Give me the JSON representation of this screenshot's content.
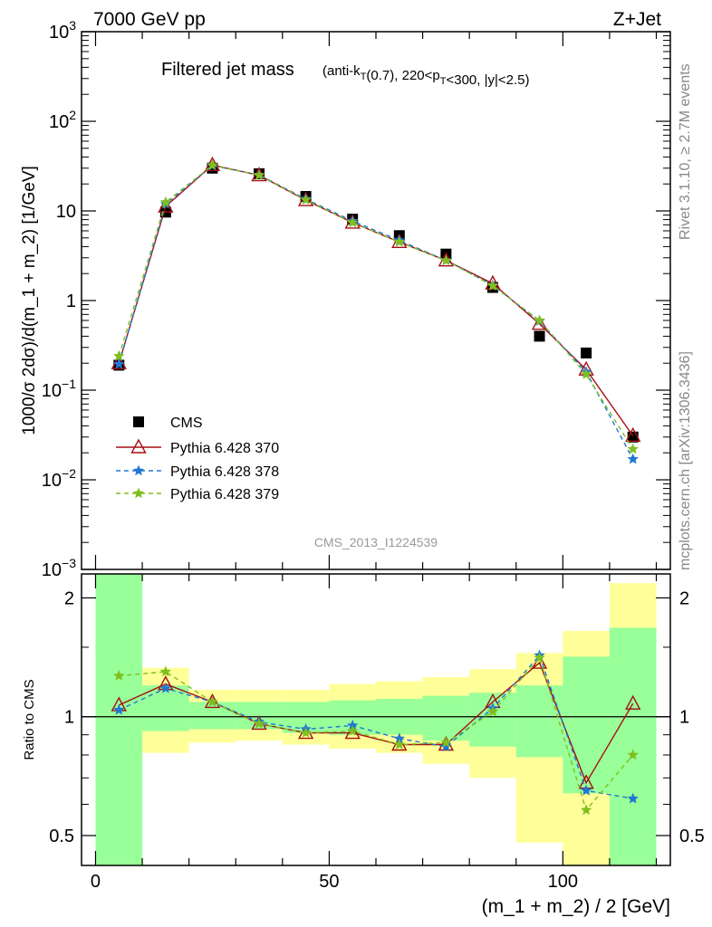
{
  "header": {
    "left": "7000 GeV pp",
    "right": "Z+Jet"
  },
  "side_text": {
    "rivet": "Rivet 3.1.10, ≥ 2.7M events",
    "mcplots": "mcplots.cern.ch [arXiv:1306.3436]"
  },
  "chart_data": [
    {
      "type": "scatter",
      "title": "Filtered jet mass",
      "subtitle": "(anti-k_T(0.7), 220<p_T<300, |y|<2.5)",
      "ylabel": "1000/σ 2dσ)/d(m_1 + m_2) [1/GeV]",
      "yscale": "log",
      "ylim": [
        0.001,
        1000
      ],
      "xlim": [
        -3,
        123
      ],
      "y_tick_labels": [
        "10^-3",
        "10^-2",
        "10^-1",
        "1",
        "10",
        "10^2",
        "10^3"
      ],
      "watermark": "CMS_2013_I1224539",
      "legend_position": "lower-left",
      "x": [
        5,
        15,
        25,
        35,
        45,
        55,
        65,
        75,
        85,
        95,
        105,
        115
      ],
      "series": [
        {
          "name": "CMS",
          "color": "#000000",
          "marker": "square",
          "values": [
            0.19,
            9.7,
            30,
            26,
            14.5,
            8.1,
            5.3,
            3.3,
            1.4,
            0.4,
            0.26,
            0.03
          ]
        },
        {
          "name": "Pythia 6.428 370",
          "color": "#a50f15",
          "marker": "open-triangle",
          "dash": "solid",
          "values": [
            0.2,
            11.2,
            32.5,
            25,
            13.2,
            7.4,
            4.5,
            2.8,
            1.55,
            0.55,
            0.17,
            0.031
          ]
        },
        {
          "name": "Pythia 6.428 378",
          "color": "#1f78d4",
          "marker": "star",
          "dash": "dashed",
          "values": [
            0.195,
            11.9,
            32,
            25.2,
            13.6,
            7.7,
            4.7,
            2.8,
            1.48,
            0.59,
            0.16,
            0.017
          ]
        },
        {
          "name": "Pythia 6.428 379",
          "color": "#7fbf1f",
          "marker": "star",
          "dash": "dashed",
          "values": [
            0.24,
            12.5,
            32.3,
            25,
            13.3,
            7.4,
            4.5,
            2.8,
            1.46,
            0.6,
            0.15,
            0.022
          ]
        }
      ]
    },
    {
      "type": "line",
      "ylabel": "Ratio to CMS",
      "xlabel": "(m_1 + m_2) / 2 [GeV]",
      "yscale": "log",
      "ylim": [
        0.42,
        2.3
      ],
      "xlim": [
        -3,
        123
      ],
      "x_tick_labels": [
        "0",
        "50",
        "100"
      ],
      "y_tick_labels": [
        "0.5",
        "1",
        "2"
      ],
      "x": [
        5,
        15,
        25,
        35,
        45,
        55,
        65,
        75,
        85,
        95,
        105,
        115
      ],
      "bands": {
        "bin_edges": [
          0,
          10,
          20,
          30,
          40,
          50,
          60,
          70,
          80,
          90,
          100,
          110,
          120
        ],
        "yellow": [
          [
            0.4,
            2.3
          ],
          [
            0.81,
            1.33
          ],
          [
            0.86,
            1.17
          ],
          [
            0.87,
            1.17
          ],
          [
            0.85,
            1.17
          ],
          [
            0.83,
            1.21
          ],
          [
            0.81,
            1.23
          ],
          [
            0.76,
            1.26
          ],
          [
            0.7,
            1.32
          ],
          [
            0.48,
            1.45
          ],
          [
            0.4,
            1.65
          ],
          [
            0.4,
            2.18
          ],
          [
            0.4,
            2.16
          ]
        ],
        "green": [
          [
            0.4,
            2.3
          ],
          [
            0.92,
            1.2
          ],
          [
            0.93,
            1.09
          ],
          [
            0.93,
            1.09
          ],
          [
            0.91,
            1.09
          ],
          [
            0.9,
            1.1
          ],
          [
            0.9,
            1.11
          ],
          [
            0.87,
            1.13
          ],
          [
            0.84,
            1.15
          ],
          [
            0.79,
            1.2
          ],
          [
            0.64,
            1.42
          ],
          [
            0.4,
            1.68
          ],
          [
            0.4,
            1.67
          ]
        ]
      },
      "series": [
        {
          "name": "Pythia 6.428 370",
          "values": [
            1.07,
            1.21,
            1.09,
            0.96,
            0.91,
            0.91,
            0.85,
            0.85,
            1.09,
            1.37,
            0.68,
            1.08
          ]
        },
        {
          "name": "Pythia 6.428 378",
          "values": [
            1.04,
            1.18,
            1.09,
            0.97,
            0.93,
            0.95,
            0.88,
            0.84,
            1.05,
            1.43,
            0.65,
            0.62
          ]
        },
        {
          "name": "Pythia 6.428 379",
          "values": [
            1.27,
            1.3,
            1.09,
            0.96,
            0.91,
            0.92,
            0.85,
            0.86,
            1.03,
            1.41,
            0.58,
            0.8
          ]
        }
      ]
    }
  ]
}
